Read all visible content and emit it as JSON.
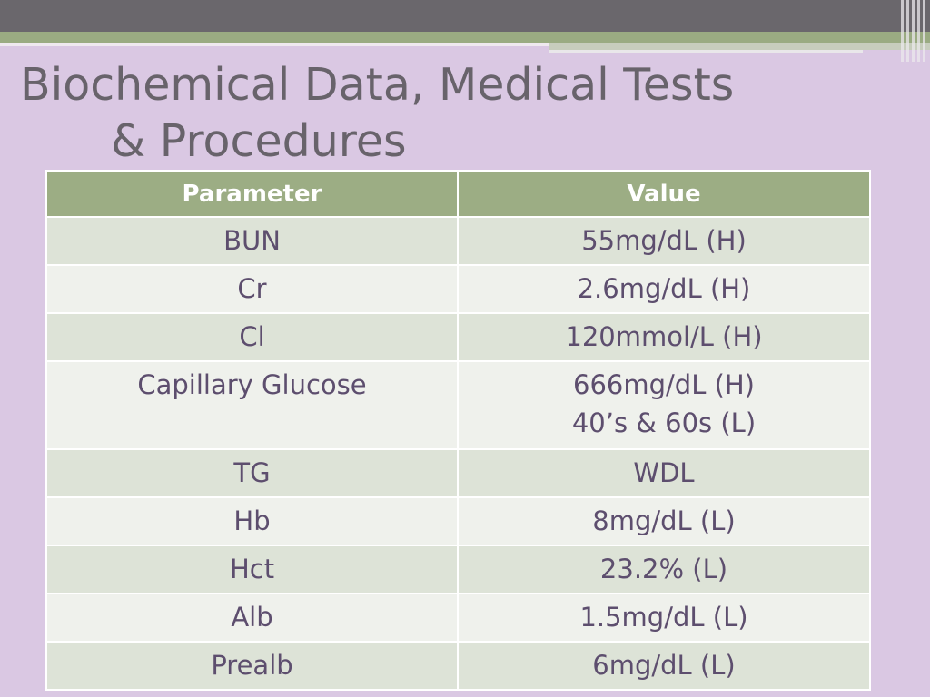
{
  "slide": {
    "title_line1": "Biochemical Data, Medical Tests",
    "title_line2": "& Procedures"
  },
  "table": {
    "headers": [
      "Parameter",
      "Value"
    ],
    "rows": [
      {
        "parameter": "BUN",
        "value": [
          "55mg/dL (H)"
        ]
      },
      {
        "parameter": "Cr",
        "value": [
          "2.6mg/dL (H)"
        ]
      },
      {
        "parameter": "Cl",
        "value": [
          "120mmol/L (H)"
        ]
      },
      {
        "parameter": "Capillary Glucose",
        "value": [
          "666mg/dL (H)",
          "40’s & 60s (L)"
        ]
      },
      {
        "parameter": "TG",
        "value": [
          "WDL"
        ]
      },
      {
        "parameter": "Hb",
        "value": [
          "8mg/dL (L)"
        ]
      },
      {
        "parameter": "Hct",
        "value": [
          "23.2% (L)"
        ]
      },
      {
        "parameter": "Alb",
        "value": [
          "1.5mg/dL (L)"
        ]
      },
      {
        "parameter": "Prealb",
        "value": [
          "6mg/dL (L)"
        ]
      }
    ]
  },
  "theme": {
    "background": "#dac8e3",
    "header_green": "#9cad84",
    "top_bar": "#6a676c",
    "text": "#5d4e6e"
  }
}
